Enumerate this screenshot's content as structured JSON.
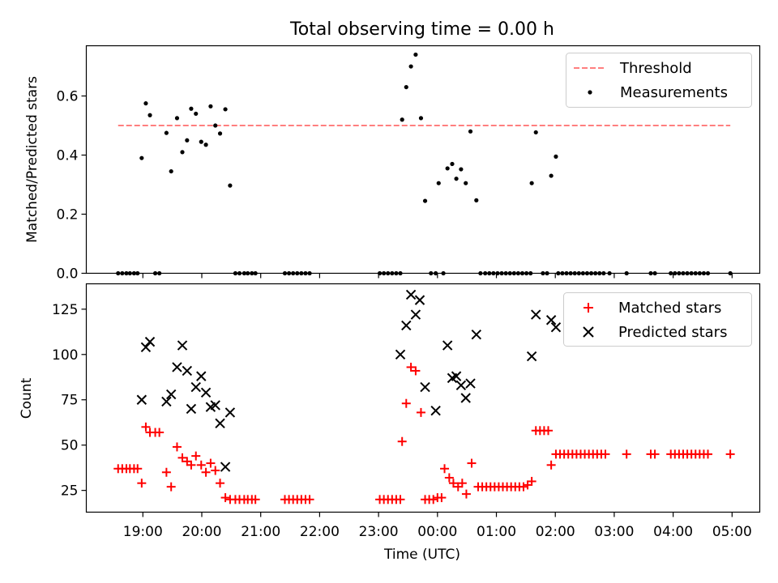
{
  "title": "Total observing time = 0.00 h",
  "chart_data": [
    {
      "type": "scatter",
      "panel": "top",
      "ylabel": "Matched/Predicted stars",
      "xlabel": "",
      "x_unit": "time UTC (hours; values above 24 are after midnight)",
      "xlim": [
        18.04,
        29.47
      ],
      "ylim": [
        0,
        0.77
      ],
      "yticks": [
        0.0,
        0.2,
        0.4,
        0.6
      ],
      "ytick_labels": [
        "0.0",
        "0.2",
        "0.4",
        "0.6"
      ],
      "legend_position": "top-right",
      "series": [
        {
          "name": "Threshold",
          "kind": "dashed-line",
          "color": "#ff7f7f",
          "x": [
            18.58,
            28.97
          ],
          "y": [
            0.5,
            0.5
          ]
        },
        {
          "name": "Measurements",
          "kind": "dot",
          "color": "#000000",
          "points": [
            [
              18.58,
              0
            ],
            [
              18.65,
              0
            ],
            [
              18.72,
              0
            ],
            [
              18.78,
              0
            ],
            [
              18.85,
              0
            ],
            [
              18.91,
              0
            ],
            [
              18.98,
              0.39
            ],
            [
              19.05,
              0.575
            ],
            [
              19.12,
              0.535
            ],
            [
              19.21,
              0
            ],
            [
              19.28,
              0
            ],
            [
              19.4,
              0.475
            ],
            [
              19.48,
              0.345
            ],
            [
              19.58,
              0.525
            ],
            [
              19.67,
              0.41
            ],
            [
              19.75,
              0.45
            ],
            [
              19.82,
              0.557
            ],
            [
              19.9,
              0.54
            ],
            [
              19.99,
              0.445
            ],
            [
              20.07,
              0.435
            ],
            [
              20.15,
              0.565
            ],
            [
              20.23,
              0.5
            ],
            [
              20.31,
              0.473
            ],
            [
              20.4,
              0.555
            ],
            [
              20.48,
              0.297
            ],
            [
              20.57,
              0
            ],
            [
              20.64,
              0
            ],
            [
              20.72,
              0
            ],
            [
              20.78,
              0
            ],
            [
              20.85,
              0
            ],
            [
              20.91,
              0
            ],
            [
              21.41,
              0
            ],
            [
              21.48,
              0
            ],
            [
              21.55,
              0
            ],
            [
              21.62,
              0
            ],
            [
              21.69,
              0
            ],
            [
              21.76,
              0
            ],
            [
              21.83,
              0
            ],
            [
              23.02,
              0
            ],
            [
              23.09,
              0
            ],
            [
              23.16,
              0
            ],
            [
              23.23,
              0
            ],
            [
              23.3,
              0
            ],
            [
              23.37,
              0
            ],
            [
              23.4,
              0.52
            ],
            [
              23.47,
              0.63
            ],
            [
              23.55,
              0.7
            ],
            [
              23.63,
              0.74
            ],
            [
              23.72,
              0.525
            ],
            [
              23.79,
              0.245
            ],
            [
              23.89,
              0
            ],
            [
              23.97,
              0
            ],
            [
              24.02,
              0.305
            ],
            [
              24.1,
              0
            ],
            [
              24.17,
              0.355
            ],
            [
              24.25,
              0.37
            ],
            [
              24.32,
              0.32
            ],
            [
              24.4,
              0.352
            ],
            [
              24.48,
              0.305
            ],
            [
              24.56,
              0.48
            ],
            [
              24.66,
              0.247
            ],
            [
              24.73,
              0
            ],
            [
              24.81,
              0
            ],
            [
              24.88,
              0
            ],
            [
              24.95,
              0
            ],
            [
              25.02,
              0
            ],
            [
              25.09,
              0
            ],
            [
              25.16,
              0
            ],
            [
              25.23,
              0
            ],
            [
              25.3,
              0
            ],
            [
              25.37,
              0
            ],
            [
              25.44,
              0
            ],
            [
              25.51,
              0
            ],
            [
              25.58,
              0
            ],
            [
              25.6,
              0.305
            ],
            [
              25.67,
              0.477
            ],
            [
              25.79,
              0
            ],
            [
              25.86,
              0
            ],
            [
              25.93,
              0.33
            ],
            [
              26.01,
              0.395
            ],
            [
              26.05,
              0
            ],
            [
              26.12,
              0
            ],
            [
              26.19,
              0
            ],
            [
              26.26,
              0
            ],
            [
              26.33,
              0
            ],
            [
              26.4,
              0
            ],
            [
              26.47,
              0
            ],
            [
              26.54,
              0
            ],
            [
              26.61,
              0
            ],
            [
              26.68,
              0
            ],
            [
              26.75,
              0
            ],
            [
              26.82,
              0
            ],
            [
              26.92,
              0
            ],
            [
              27.21,
              0
            ],
            [
              27.62,
              0
            ],
            [
              27.69,
              0
            ],
            [
              27.96,
              0
            ],
            [
              28.03,
              0
            ],
            [
              28.1,
              0
            ],
            [
              28.17,
              0
            ],
            [
              28.24,
              0
            ],
            [
              28.31,
              0
            ],
            [
              28.38,
              0
            ],
            [
              28.45,
              0
            ],
            [
              28.52,
              0
            ],
            [
              28.59,
              0
            ],
            [
              28.97,
              0
            ]
          ]
        }
      ]
    },
    {
      "type": "scatter",
      "panel": "bottom",
      "ylabel": "Count",
      "xlabel": "Time (UTC)",
      "x_unit": "time UTC (hours; values above 24 are after midnight)",
      "xlim": [
        18.04,
        29.47
      ],
      "ylim": [
        13,
        139
      ],
      "yticks": [
        25,
        50,
        75,
        100,
        125
      ],
      "ytick_labels": [
        "25",
        "50",
        "75",
        "100",
        "125"
      ],
      "xticks": [
        19,
        20,
        21,
        22,
        23,
        24,
        25,
        26,
        27,
        28,
        29
      ],
      "xtick_labels": [
        "19:00",
        "20:00",
        "21:00",
        "22:00",
        "23:00",
        "00:00",
        "01:00",
        "02:00",
        "03:00",
        "04:00",
        "05:00"
      ],
      "legend_position": "top-right",
      "series": [
        {
          "name": "Matched stars",
          "marker": "plus",
          "color": "#ff0000",
          "points": [
            [
              18.58,
              37
            ],
            [
              18.65,
              37
            ],
            [
              18.72,
              37
            ],
            [
              18.78,
              37
            ],
            [
              18.85,
              37
            ],
            [
              18.91,
              37
            ],
            [
              18.98,
              29
            ],
            [
              19.05,
              60
            ],
            [
              19.12,
              57
            ],
            [
              19.21,
              57
            ],
            [
              19.28,
              57
            ],
            [
              19.4,
              35
            ],
            [
              19.48,
              27
            ],
            [
              19.58,
              49
            ],
            [
              19.67,
              43
            ],
            [
              19.75,
              41
            ],
            [
              19.82,
              39
            ],
            [
              19.9,
              44
            ],
            [
              19.99,
              39
            ],
            [
              20.07,
              35
            ],
            [
              20.15,
              40
            ],
            [
              20.23,
              36
            ],
            [
              20.31,
              29
            ],
            [
              20.4,
              21
            ],
            [
              20.48,
              20
            ],
            [
              20.57,
              20
            ],
            [
              20.64,
              20
            ],
            [
              20.72,
              20
            ],
            [
              20.78,
              20
            ],
            [
              20.85,
              20
            ],
            [
              20.91,
              20
            ],
            [
              21.41,
              20
            ],
            [
              21.48,
              20
            ],
            [
              21.55,
              20
            ],
            [
              21.62,
              20
            ],
            [
              21.69,
              20
            ],
            [
              21.76,
              20
            ],
            [
              21.83,
              20
            ],
            [
              23.02,
              20
            ],
            [
              23.09,
              20
            ],
            [
              23.16,
              20
            ],
            [
              23.23,
              20
            ],
            [
              23.3,
              20
            ],
            [
              23.37,
              20
            ],
            [
              23.4,
              52
            ],
            [
              23.47,
              73
            ],
            [
              23.55,
              93
            ],
            [
              23.63,
              91
            ],
            [
              23.72,
              68
            ],
            [
              23.79,
              20
            ],
            [
              23.86,
              20
            ],
            [
              23.93,
              20
            ],
            [
              24.0,
              21
            ],
            [
              24.07,
              21
            ],
            [
              24.12,
              37
            ],
            [
              24.2,
              32
            ],
            [
              24.27,
              29
            ],
            [
              24.35,
              27
            ],
            [
              24.42,
              29
            ],
            [
              24.49,
              23
            ],
            [
              24.58,
              40
            ],
            [
              24.69,
              27
            ],
            [
              24.76,
              27
            ],
            [
              24.83,
              27
            ],
            [
              24.9,
              27
            ],
            [
              24.97,
              27
            ],
            [
              25.04,
              27
            ],
            [
              25.11,
              27
            ],
            [
              25.18,
              27
            ],
            [
              25.25,
              27
            ],
            [
              25.32,
              27
            ],
            [
              25.39,
              27
            ],
            [
              25.46,
              27
            ],
            [
              25.53,
              28
            ],
            [
              25.6,
              30
            ],
            [
              25.67,
              58
            ],
            [
              25.74,
              58
            ],
            [
              25.81,
              58
            ],
            [
              25.88,
              58
            ],
            [
              25.93,
              39
            ],
            [
              26.01,
              45
            ],
            [
              26.08,
              45
            ],
            [
              26.15,
              45
            ],
            [
              26.22,
              45
            ],
            [
              26.29,
              45
            ],
            [
              26.36,
              45
            ],
            [
              26.43,
              45
            ],
            [
              26.5,
              45
            ],
            [
              26.57,
              45
            ],
            [
              26.64,
              45
            ],
            [
              26.71,
              45
            ],
            [
              26.78,
              45
            ],
            [
              26.85,
              45
            ],
            [
              27.21,
              45
            ],
            [
              27.62,
              45
            ],
            [
              27.69,
              45
            ],
            [
              27.96,
              45
            ],
            [
              28.03,
              45
            ],
            [
              28.1,
              45
            ],
            [
              28.17,
              45
            ],
            [
              28.24,
              45
            ],
            [
              28.31,
              45
            ],
            [
              28.38,
              45
            ],
            [
              28.45,
              45
            ],
            [
              28.52,
              45
            ],
            [
              28.59,
              45
            ],
            [
              28.97,
              45
            ]
          ]
        },
        {
          "name": "Predicted stars",
          "marker": "x",
          "color": "#000000",
          "points": [
            [
              18.98,
              75
            ],
            [
              19.05,
              104
            ],
            [
              19.12,
              107
            ],
            [
              19.4,
              74
            ],
            [
              19.48,
              78
            ],
            [
              19.58,
              93
            ],
            [
              19.67,
              105
            ],
            [
              19.75,
              91
            ],
            [
              19.82,
              70
            ],
            [
              19.9,
              82
            ],
            [
              19.99,
              88
            ],
            [
              20.07,
              79
            ],
            [
              20.15,
              71
            ],
            [
              20.23,
              72
            ],
            [
              20.31,
              62
            ],
            [
              20.4,
              38
            ],
            [
              20.48,
              68
            ],
            [
              23.37,
              100
            ],
            [
              23.47,
              116
            ],
            [
              23.55,
              133
            ],
            [
              23.63,
              122
            ],
            [
              23.7,
              130
            ],
            [
              23.79,
              82
            ],
            [
              23.97,
              69
            ],
            [
              24.17,
              105
            ],
            [
              24.25,
              87
            ],
            [
              24.32,
              88
            ],
            [
              24.4,
              83
            ],
            [
              24.48,
              76
            ],
            [
              24.56,
              84
            ],
            [
              24.66,
              111
            ],
            [
              25.6,
              99
            ],
            [
              25.67,
              122
            ],
            [
              25.93,
              119
            ],
            [
              26.01,
              115
            ]
          ]
        }
      ]
    }
  ]
}
